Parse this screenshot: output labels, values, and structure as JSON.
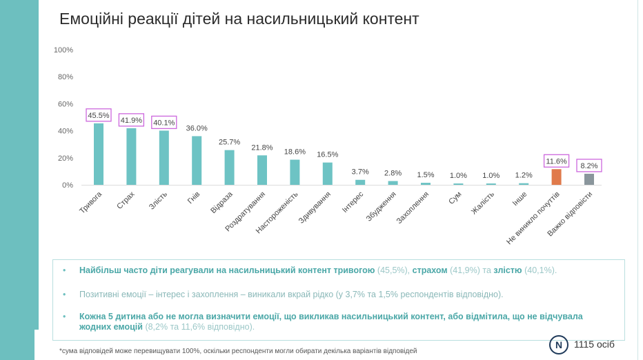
{
  "title": "Емоційні реакції дітей на насильницький контент",
  "colors": {
    "bar_default": "#6dc3c4",
    "bar_highlight_1": "#e07a4b",
    "bar_highlight_2": "#8a969c",
    "label_box": "#cc66dd",
    "accent": "#6dbfbf"
  },
  "chart_data": {
    "type": "bar",
    "categories": [
      "Тривога",
      "Страх",
      "Злість",
      "Гнів",
      "Відраза",
      "Роздратування",
      "Настороженість",
      "Здивування",
      "Інтерес",
      "Збудження",
      "Захоплення",
      "Сум",
      "Жалість",
      "Інше",
      "Не виникло почуттів",
      "Важко відповісти"
    ],
    "values": [
      45.5,
      41.9,
      40.1,
      36.0,
      25.7,
      21.8,
      18.6,
      16.5,
      3.7,
      2.8,
      1.5,
      1.0,
      1.0,
      1.2,
      11.6,
      8.2
    ],
    "value_labels": [
      "45.5%",
      "41.9%",
      "40.1%",
      "36.0%",
      "25.7%",
      "21.8%",
      "18.6%",
      "16.5%",
      "3.7%",
      "2.8%",
      "1.5%",
      "1.0%",
      "1.0%",
      "1.2%",
      "11.6%",
      "8.2%"
    ],
    "boxed": [
      true,
      true,
      true,
      false,
      false,
      false,
      false,
      false,
      false,
      false,
      false,
      false,
      false,
      false,
      true,
      true
    ],
    "bar_colors": [
      "#6dc3c4",
      "#6dc3c4",
      "#6dc3c4",
      "#6dc3c4",
      "#6dc3c4",
      "#6dc3c4",
      "#6dc3c4",
      "#6dc3c4",
      "#6dc3c4",
      "#6dc3c4",
      "#6dc3c4",
      "#6dc3c4",
      "#6dc3c4",
      "#6dc3c4",
      "#e07a4b",
      "#8a969c"
    ],
    "y_ticks": [
      "100%",
      "80%",
      "60%",
      "40%",
      "20%",
      "0%"
    ],
    "ylim": [
      0,
      100
    ],
    "grid": false,
    "xlabel": "",
    "ylabel": ""
  },
  "summary": {
    "bullet_1": {
      "a": "Найбільш часто діти реагували на насильницький контент тривогою",
      "b": " (45,5%), ",
      "c": "страхом",
      "d": " (41,9%) та ",
      "e": "злістю",
      "f": " (40,1%)."
    },
    "bullet_2": "Позитивні емоції – інтерес і захоплення – виникали вкрай рідко (у 3,7% та 1,5% респондентів відповідно).",
    "bullet_3": {
      "a": "Кожна 5 дитина або не могла визначити емоції, що викликав насильницький контент, або відмітила, що не відчувала жодних емоцій",
      "b": " (8,2% та 11,6% відповідно)."
    },
    "bullet_symbol": "•"
  },
  "footnote": "*сума відповідей може перевищувати 100%, оскільки респонденти могли обирати декілька варіантів відповідей",
  "logo_letter": "N",
  "respondents": "1115 осіб"
}
